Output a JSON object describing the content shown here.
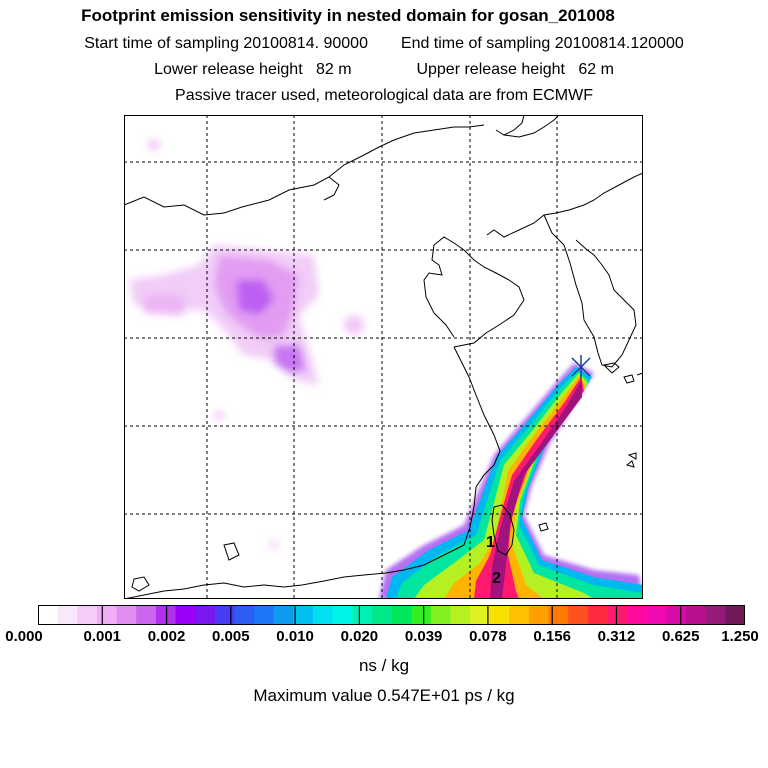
{
  "header": {
    "title": "Footprint emission sensitivity in nested domain for gosan_201008",
    "start_label": "Start time of sampling 20100814. 90000",
    "end_label": "End time of sampling 20100814.120000",
    "lower_label": "Lower release height   82 m",
    "upper_label": "Upper release height   62 m",
    "tracer_note": "Passive tracer used, meteorological data are from ECMWF"
  },
  "map": {
    "markers": [
      {
        "label": "1"
      },
      {
        "label": "2"
      }
    ],
    "receptor_icon": "station-cross-icon"
  },
  "colorbar": {
    "unit": "ns / kg",
    "tick_labels": [
      "0.000",
      "0.001",
      "0.002",
      "0.005",
      "0.010",
      "0.020",
      "0.039",
      "0.078",
      "0.156",
      "0.312",
      "0.625",
      "1.250"
    ],
    "colors": [
      "#ffffff",
      "#fbe7fb",
      "#f6cbf8",
      "#efaef5",
      "#e08ef0",
      "#cc66f0",
      "#b030f0",
      "#9a00f5",
      "#7a18f0",
      "#4a3bf5",
      "#2e5cf5",
      "#1d78f5",
      "#0f9cf0",
      "#00c0f0",
      "#00e0f0",
      "#00f5e6",
      "#00f0b4",
      "#00e88a",
      "#00e65a",
      "#33ee22",
      "#80f022",
      "#b4f022",
      "#e0f022",
      "#f8e000",
      "#ffc000",
      "#ffa000",
      "#ff7a00",
      "#ff5020",
      "#ff2a40",
      "#ff1a70",
      "#ff0aa0",
      "#f00ab4",
      "#d80aa8",
      "#b8108e",
      "#961a78",
      "#701a5a"
    ]
  },
  "footer": {
    "max_value": "Maximum value  0.547E+01 ps / kg"
  },
  "colors": {
    "grid": "#000000",
    "coast": "#000000"
  }
}
